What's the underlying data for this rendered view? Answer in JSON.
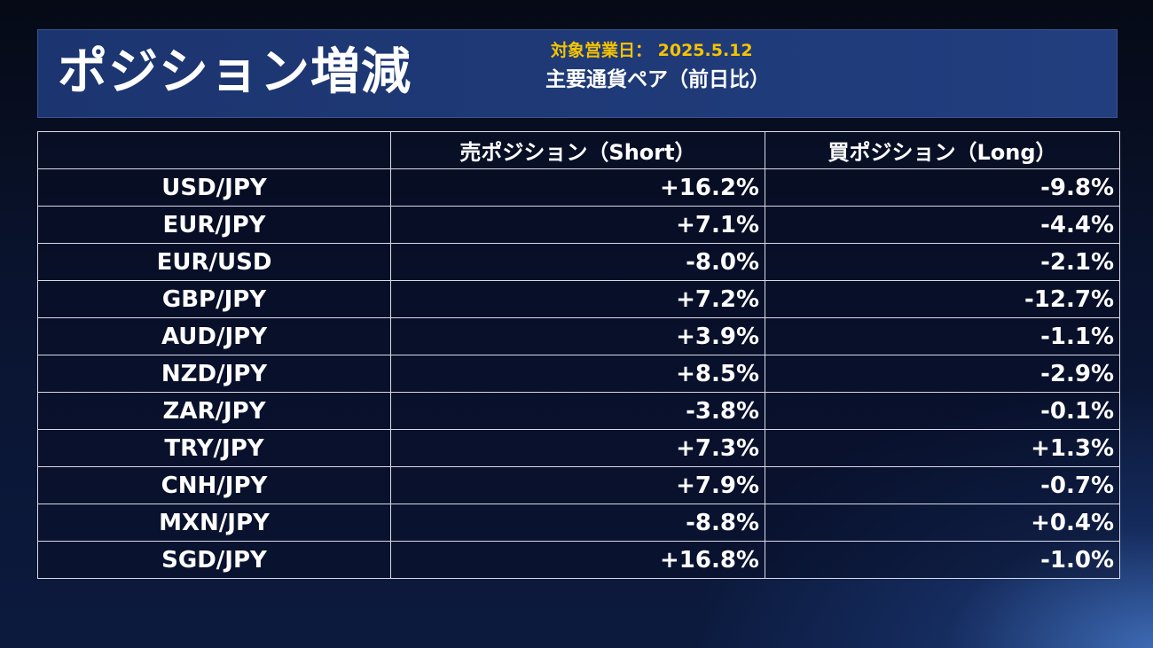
{
  "header": {
    "title": "ポジション増減",
    "date_label": "対象営業日：",
    "date_value": "2025.5.12",
    "subtitle": "主要通貨ペア（前日比）"
  },
  "table": {
    "columns": [
      "",
      "売ポジション（Short）",
      "買ポジション（Long）"
    ],
    "rows": [
      {
        "pair": "USD/JPY",
        "short": "+16.2%",
        "long": "-9.8%"
      },
      {
        "pair": "EUR/JPY",
        "short": "+7.1%",
        "long": "-4.4%"
      },
      {
        "pair": "EUR/USD",
        "short": "-8.0%",
        "long": "-2.1%"
      },
      {
        "pair": "GBP/JPY",
        "short": "+7.2%",
        "long": "-12.7%"
      },
      {
        "pair": "AUD/JPY",
        "short": "+3.9%",
        "long": "-1.1%"
      },
      {
        "pair": "NZD/JPY",
        "short": "+8.5%",
        "long": "-2.9%"
      },
      {
        "pair": "ZAR/JPY",
        "short": "-3.8%",
        "long": "-0.1%"
      },
      {
        "pair": "TRY/JPY",
        "short": "+7.3%",
        "long": "+1.3%"
      },
      {
        "pair": "CNH/JPY",
        "short": "+7.9%",
        "long": "-0.7%"
      },
      {
        "pair": "MXN/JPY",
        "short": "-8.8%",
        "long": "+0.4%"
      },
      {
        "pair": "SGD/JPY",
        "short": "+16.8%",
        "long": "-1.0%"
      }
    ]
  },
  "colors": {
    "accent_date": "#f5c400",
    "header_bg": "#1c3570",
    "text": "#ffffff"
  }
}
